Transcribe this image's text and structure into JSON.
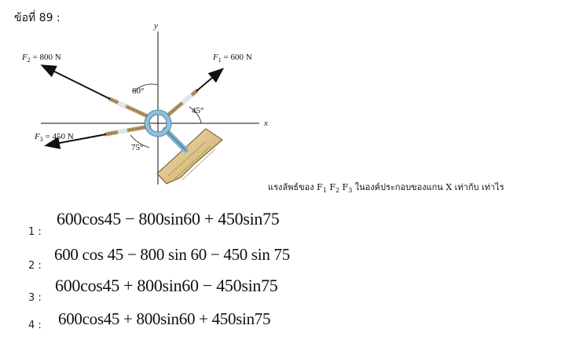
{
  "question": {
    "title": "ข้อที่ 89 :",
    "prompt_prefix": "แรงลัพธ์ของ ",
    "prompt_forces": [
      {
        "sym": "F",
        "sub": "1"
      },
      {
        "sym": "F",
        "sub": "2"
      },
      {
        "sym": "F",
        "sub": "3"
      }
    ],
    "prompt_suffix": " ในองค์ประกอบของแกน X เท่ากับ เท่าไร"
  },
  "figure": {
    "axis_x": "x",
    "axis_y": "y",
    "f1": {
      "sym": "F",
      "sub": "1",
      "value": " = 600 N"
    },
    "f2": {
      "sym": "F",
      "sub": "2",
      "value": " = 800 N"
    },
    "f3": {
      "sym": "F",
      "sub": "3",
      "value": " = 450 N"
    },
    "angle_60": "60°",
    "angle_45": "45°",
    "angle_75": "75°"
  },
  "options": [
    {
      "number": "1 :",
      "expression": "600cos45 − 800sin60 + 450sin75"
    },
    {
      "number": "2 :",
      "expression": "600 cos 45 − 800 sin 60 − 450 sin 75"
    },
    {
      "number": "3 :",
      "expression": "600cos45 + 800sin60 − 450sin75"
    },
    {
      "number": "4 :",
      "expression": "600cos45 + 800sin60 + 450sin75"
    }
  ]
}
